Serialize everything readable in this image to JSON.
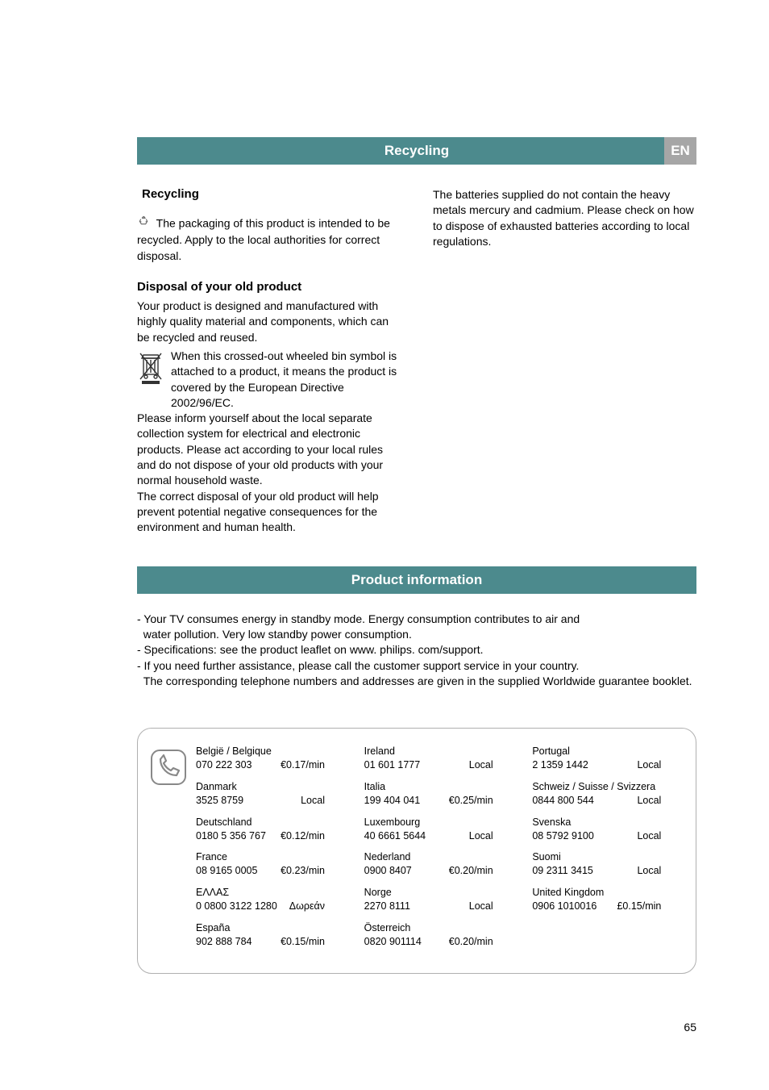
{
  "header": {
    "title": "Recycling",
    "lang_badge": "EN"
  },
  "recycling": {
    "heading": "Recycling",
    "packaging_text": "The packaging of this product is intended to be recycled. Apply to the local authorities for correct disposal.",
    "disposal_heading": "Disposal of your old product",
    "disposal_para1": "Your product is designed and manufactured with highly quality material and components, which can be recycled and reused.",
    "weee_text": "When this crossed-out wheeled bin symbol is attached to a product, it means the product is covered by the European Directive 2002/96/EC.",
    "disposal_para2": "Please inform yourself about the local separate collection system for electrical and electronic products. Please act according to your local rules and do not dispose of your old products with your normal household waste.",
    "disposal_para3": "The correct disposal of your old product will help prevent potential negative consequences for the environment and human health.",
    "batteries_text": "The batteries supplied do not contain the heavy metals mercury and cadmium. Please check on how to dispose of exhausted batteries according to local regulations."
  },
  "product_info": {
    "heading": "Product information",
    "bullet1": "- Your TV consumes energy in standby mode. Energy consumption contributes to air and",
    "bullet1b": "  water pollution. Very low standby power consumption.",
    "bullet2": "- Specifications: see the product leaflet on www. philips. com/support.",
    "bullet3": "- If you need further assistance, please call the customer support service in your country.",
    "bullet3b": "  The corresponding telephone numbers and addresses are given in the supplied Worldwide guarantee booklet."
  },
  "phone_table": {
    "col1": [
      {
        "country": "België / Belgique",
        "number": "070 222 303",
        "rate": "€0.17/min"
      },
      {
        "country": "Danmark",
        "number": "3525 8759",
        "rate": "Local"
      },
      {
        "country": "Deutschland",
        "number": "0180 5 356 767",
        "rate": "€0.12/min"
      },
      {
        "country": "France",
        "number": "08 9165 0005",
        "rate": "€0.23/min"
      },
      {
        "country": "EΛΛAΣ",
        "number": "0 0800 3122 1280",
        "rate": "Δωρεάν"
      },
      {
        "country": "España",
        "number": "902 888 784",
        "rate": "€0.15/min"
      }
    ],
    "col2": [
      {
        "country": "Ireland",
        "number": "01 601 1777",
        "rate": "Local"
      },
      {
        "country": "Italia",
        "number": "199 404 041",
        "rate": "€0.25/min"
      },
      {
        "country": "Luxembourg",
        "number": "40 6661 5644",
        "rate": "Local"
      },
      {
        "country": "Nederland",
        "number": "0900 8407",
        "rate": "€0.20/min"
      },
      {
        "country": "Norge",
        "number": "2270 8111",
        "rate": "Local"
      },
      {
        "country": "Österreich",
        "number": "0820 901114",
        "rate": "€0.20/min"
      }
    ],
    "col3": [
      {
        "country": "Portugal",
        "number": "2 1359 1442",
        "rate": "Local"
      },
      {
        "country": "Schweiz / Suisse / Svizzera",
        "number": "0844 800 544",
        "rate": "Local"
      },
      {
        "country": "Svenska",
        "number": "08 5792 9100",
        "rate": "Local"
      },
      {
        "country": "Suomi",
        "number": "09 2311 3415",
        "rate": "Local"
      },
      {
        "country": "United Kingdom",
        "number": "0906 1010016",
        "rate": "£0.15/min"
      }
    ]
  },
  "page_number": "65",
  "colors": {
    "bar_bg": "#4c8a8d",
    "badge_bg": "#a6a6a6",
    "text": "#000000",
    "border": "#b0b0b0"
  }
}
